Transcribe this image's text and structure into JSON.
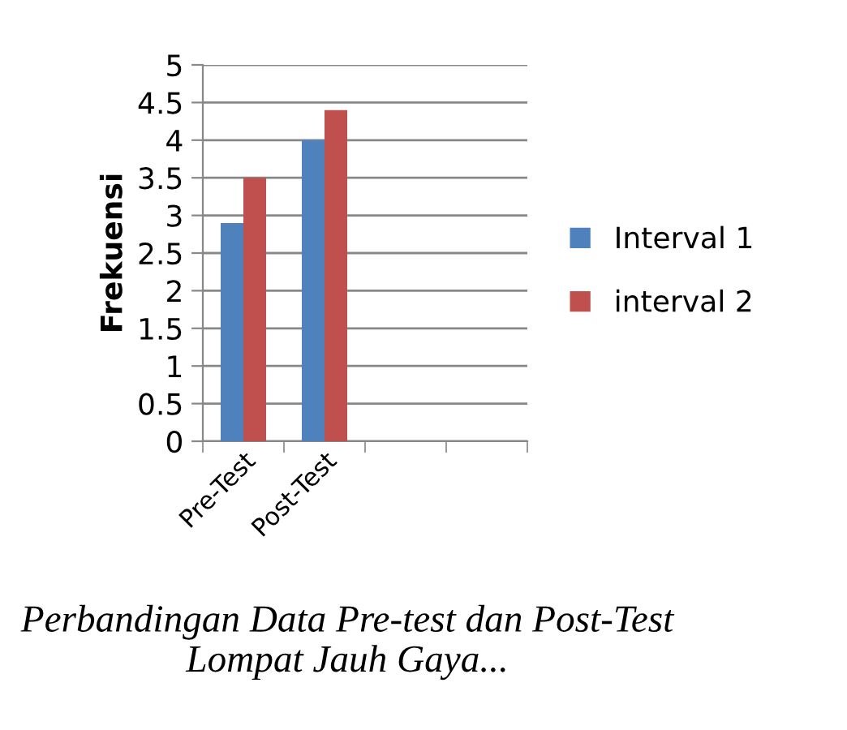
{
  "chart_data": {
    "type": "bar",
    "ylabel": "Frekuensi",
    "categories": [
      "Pre-Test",
      "Post-Test",
      null,
      null
    ],
    "series": [
      {
        "name": "Interval 1",
        "color": "#4f81bd",
        "values": [
          2.9,
          4.0,
          null,
          null
        ]
      },
      {
        "name": "interval 2",
        "color": "#c0504d",
        "values": [
          3.5,
          4.4,
          null,
          null
        ]
      }
    ],
    "ylim": [
      0,
      5
    ],
    "yticks": [
      0,
      0.5,
      1,
      1.5,
      2,
      2.5,
      3,
      3.5,
      4,
      4.5,
      5
    ],
    "grid": "y",
    "legend": "right",
    "annotations": [
      "Perbandingan Data Pre-test dan Post-Test Lompat Jauh Gaya..."
    ]
  }
}
